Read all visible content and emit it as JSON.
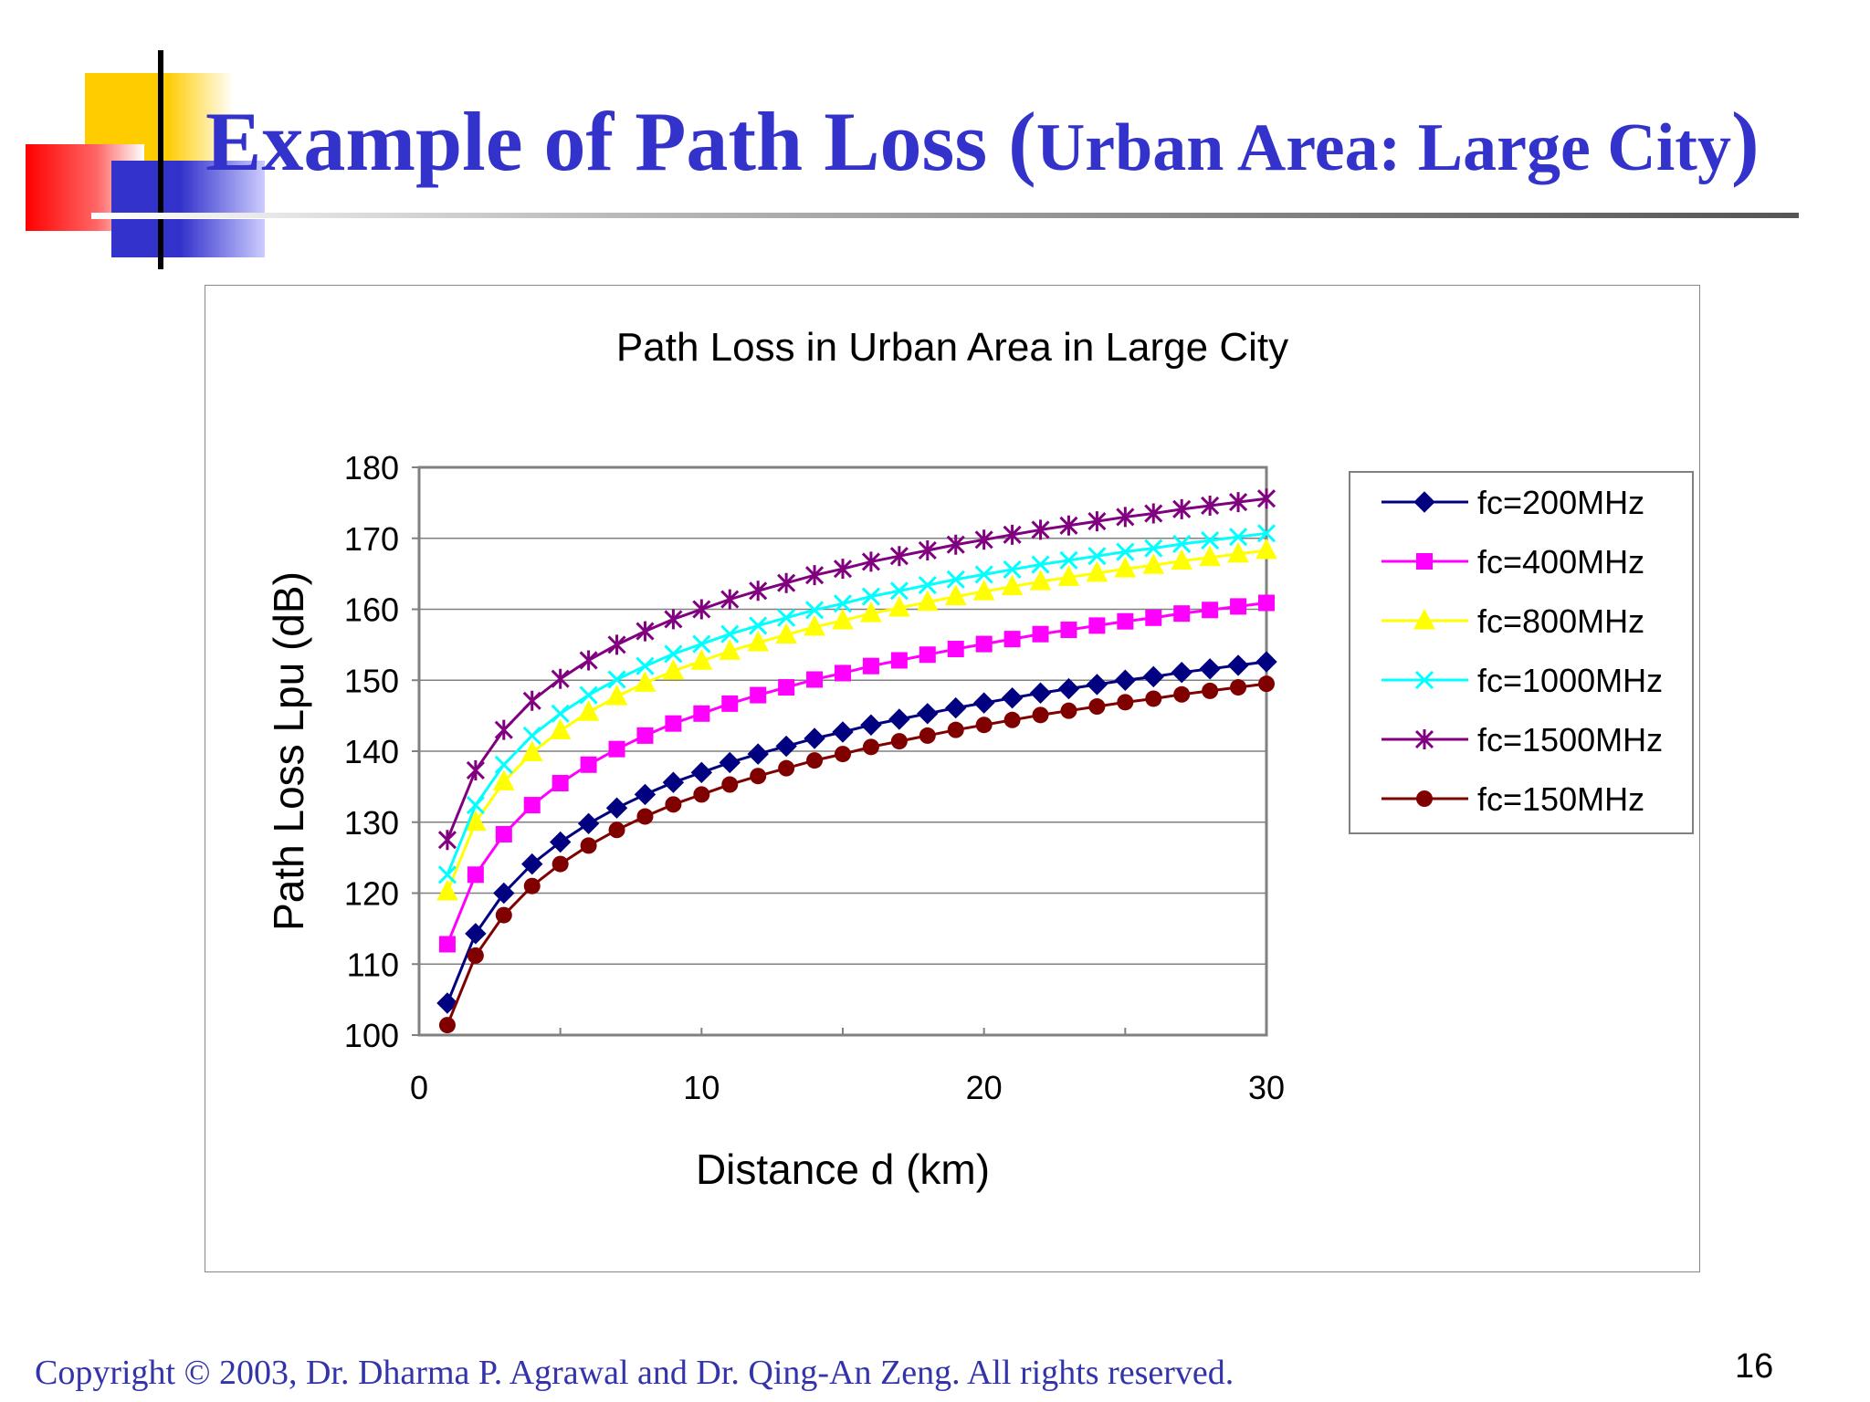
{
  "slide": {
    "title_main": "Example of Path Loss",
    "title_paren_open": "(",
    "title_sub": "Urban Area: Large City",
    "title_paren_close": ")",
    "footer": "Copyright © 2003, Dr. Dharma P. Agrawal and Dr. Qing-An Zeng. All rights reserved.",
    "page_number": "16"
  },
  "chart_data": {
    "type": "line",
    "title": "Path Loss in Urban Area in Large City",
    "xlabel": "Distance d (km)",
    "ylabel": "Path Loss Lpu (dB)",
    "xlim": [
      0,
      30
    ],
    "ylim": [
      100,
      180
    ],
    "xticks": [
      0,
      10,
      20,
      30
    ],
    "yticks": [
      100,
      110,
      120,
      130,
      140,
      150,
      160,
      170,
      180
    ],
    "grid": "horizontal",
    "legend_position": "right",
    "x": [
      1,
      2,
      3,
      4,
      5,
      6,
      7,
      8,
      9,
      10,
      11,
      12,
      13,
      14,
      15,
      16,
      17,
      18,
      19,
      20,
      21,
      22,
      23,
      24,
      25,
      26,
      27,
      28,
      29,
      30
    ],
    "series": [
      {
        "name": "fc=200MHz",
        "color": "#000080",
        "marker": "diamond",
        "values": [
          104.5,
          114.3,
          120.0,
          124.1,
          127.2,
          129.8,
          132.0,
          133.9,
          135.6,
          137.0,
          138.4,
          139.6,
          140.7,
          141.8,
          142.7,
          143.7,
          144.5,
          145.3,
          146.1,
          146.8,
          147.5,
          148.2,
          148.8,
          149.4,
          150.0,
          150.5,
          151.1,
          151.6,
          152.1,
          152.6
        ]
      },
      {
        "name": "fc=400MHz",
        "color": "#ff00ff",
        "marker": "square",
        "values": [
          112.8,
          122.6,
          128.3,
          132.4,
          135.5,
          138.1,
          140.3,
          142.2,
          143.9,
          145.3,
          146.7,
          147.9,
          149.0,
          150.1,
          151.0,
          152.0,
          152.8,
          153.6,
          154.4,
          155.1,
          155.8,
          156.5,
          157.1,
          157.7,
          158.3,
          158.8,
          159.4,
          159.9,
          160.4,
          160.9
        ]
      },
      {
        "name": "fc=800MHz",
        "color": "#ffff00",
        "marker": "triangle",
        "values": [
          120.2,
          130.0,
          135.7,
          139.8,
          142.9,
          145.5,
          147.7,
          149.6,
          151.3,
          152.7,
          154.1,
          155.3,
          156.4,
          157.5,
          158.4,
          159.4,
          160.2,
          161.0,
          161.8,
          162.5,
          163.2,
          163.9,
          164.5,
          165.1,
          165.7,
          166.2,
          166.8,
          167.3,
          167.8,
          168.3
        ]
      },
      {
        "name": "fc=1000MHz",
        "color": "#00ffff",
        "marker": "x",
        "values": [
          122.6,
          132.4,
          138.1,
          142.2,
          145.3,
          147.9,
          150.1,
          152.0,
          153.7,
          155.1,
          156.5,
          157.7,
          158.8,
          159.9,
          160.8,
          161.8,
          162.6,
          163.4,
          164.2,
          164.9,
          165.6,
          166.3,
          166.9,
          167.5,
          168.1,
          168.6,
          169.2,
          169.7,
          170.2,
          170.7
        ]
      },
      {
        "name": "fc=1500MHz",
        "color": "#800080",
        "marker": "star",
        "values": [
          127.5,
          137.3,
          143.0,
          147.1,
          150.2,
          152.8,
          155.0,
          156.9,
          158.6,
          160.0,
          161.4,
          162.6,
          163.7,
          164.8,
          165.7,
          166.7,
          167.5,
          168.3,
          169.1,
          169.8,
          170.5,
          171.2,
          171.8,
          172.4,
          173.0,
          173.5,
          174.1,
          174.6,
          175.1,
          175.6
        ]
      },
      {
        "name": "fc=150MHz",
        "color": "#800000",
        "marker": "circle",
        "values": [
          101.4,
          111.2,
          116.9,
          121.0,
          124.1,
          126.7,
          128.9,
          130.8,
          132.5,
          133.9,
          135.3,
          136.5,
          137.6,
          138.7,
          139.6,
          140.6,
          141.4,
          142.2,
          143.0,
          143.7,
          144.4,
          145.1,
          145.7,
          146.3,
          146.9,
          147.4,
          148.0,
          148.5,
          149.0,
          149.5
        ]
      }
    ]
  },
  "theme": {
    "title_color": "#3333cc",
    "footer_color": "#3333aa",
    "deco_yellow": "#ffcc00",
    "deco_red": "#ff0000",
    "deco_blue": "#3333cc"
  }
}
